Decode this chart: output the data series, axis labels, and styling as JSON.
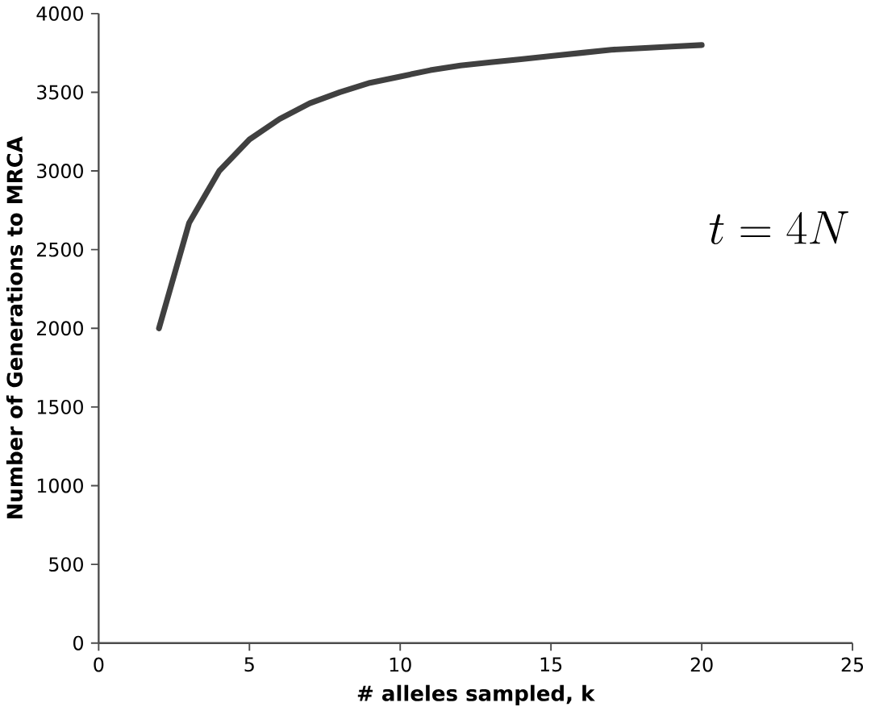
{
  "chart_data": {
    "type": "line",
    "xlabel": "# alleles sampled, k",
    "ylabel": "Number of Generations to MRCA",
    "x": [
      2,
      3,
      4,
      5,
      6,
      7,
      8,
      9,
      10,
      11,
      12,
      13,
      14,
      15,
      16,
      17,
      18,
      19,
      20
    ],
    "series": [
      {
        "color": "#404040",
        "values": [
          2000,
          2670,
          3000,
          3200,
          3330,
          3430,
          3500,
          3560,
          3600,
          3640,
          3670,
          3690,
          3710,
          3730,
          3750,
          3770,
          3780,
          3790,
          3800
        ]
      }
    ],
    "annotations": [
      "t = 4N"
    ],
    "xlim": [
      0,
      25
    ],
    "ylim": [
      0,
      4000
    ],
    "xticks": [
      0,
      5,
      10,
      15,
      20,
      25
    ],
    "yticks": [
      0,
      500,
      1000,
      1500,
      2000,
      2500,
      3000,
      3500,
      4000
    ],
    "grid": false,
    "marker": "none",
    "line_style": "solid"
  }
}
